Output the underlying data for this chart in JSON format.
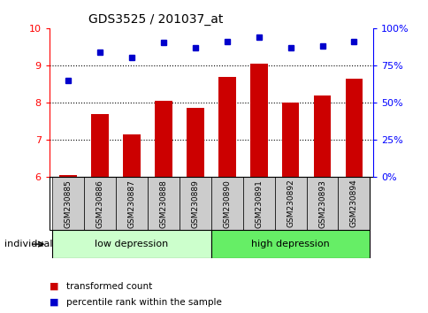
{
  "title": "GDS3525 / 201037_at",
  "categories": [
    "GSM230885",
    "GSM230886",
    "GSM230887",
    "GSM230888",
    "GSM230889",
    "GSM230890",
    "GSM230891",
    "GSM230892",
    "GSM230893",
    "GSM230894"
  ],
  "bar_values": [
    6.05,
    7.7,
    7.15,
    8.05,
    7.85,
    8.7,
    9.05,
    8.0,
    8.2,
    8.65
  ],
  "scatter_values": [
    8.6,
    9.35,
    9.2,
    9.62,
    9.48,
    9.65,
    9.75,
    9.47,
    9.52,
    9.65
  ],
  "bar_color": "#cc0000",
  "scatter_color": "#0000cc",
  "ylim_left": [
    6,
    10
  ],
  "ylim_right": [
    0,
    100
  ],
  "yticks_left": [
    6,
    7,
    8,
    9,
    10
  ],
  "yticks_right": [
    0,
    25,
    50,
    75,
    100
  ],
  "ytick_labels_right": [
    "0%",
    "25%",
    "50%",
    "75%",
    "100%"
  ],
  "group_low_label": "low depression",
  "group_high_label": "high depression",
  "individual_label": "individual",
  "legend_bar_label": "transformed count",
  "legend_scatter_label": "percentile rank within the sample",
  "bg_color": "#ffffff",
  "plot_bg_color": "#ffffff",
  "low_group_color": "#ccffcc",
  "high_group_color": "#66ee66",
  "tick_area_color": "#cccccc",
  "figsize": [
    4.85,
    3.54
  ],
  "dpi": 100
}
